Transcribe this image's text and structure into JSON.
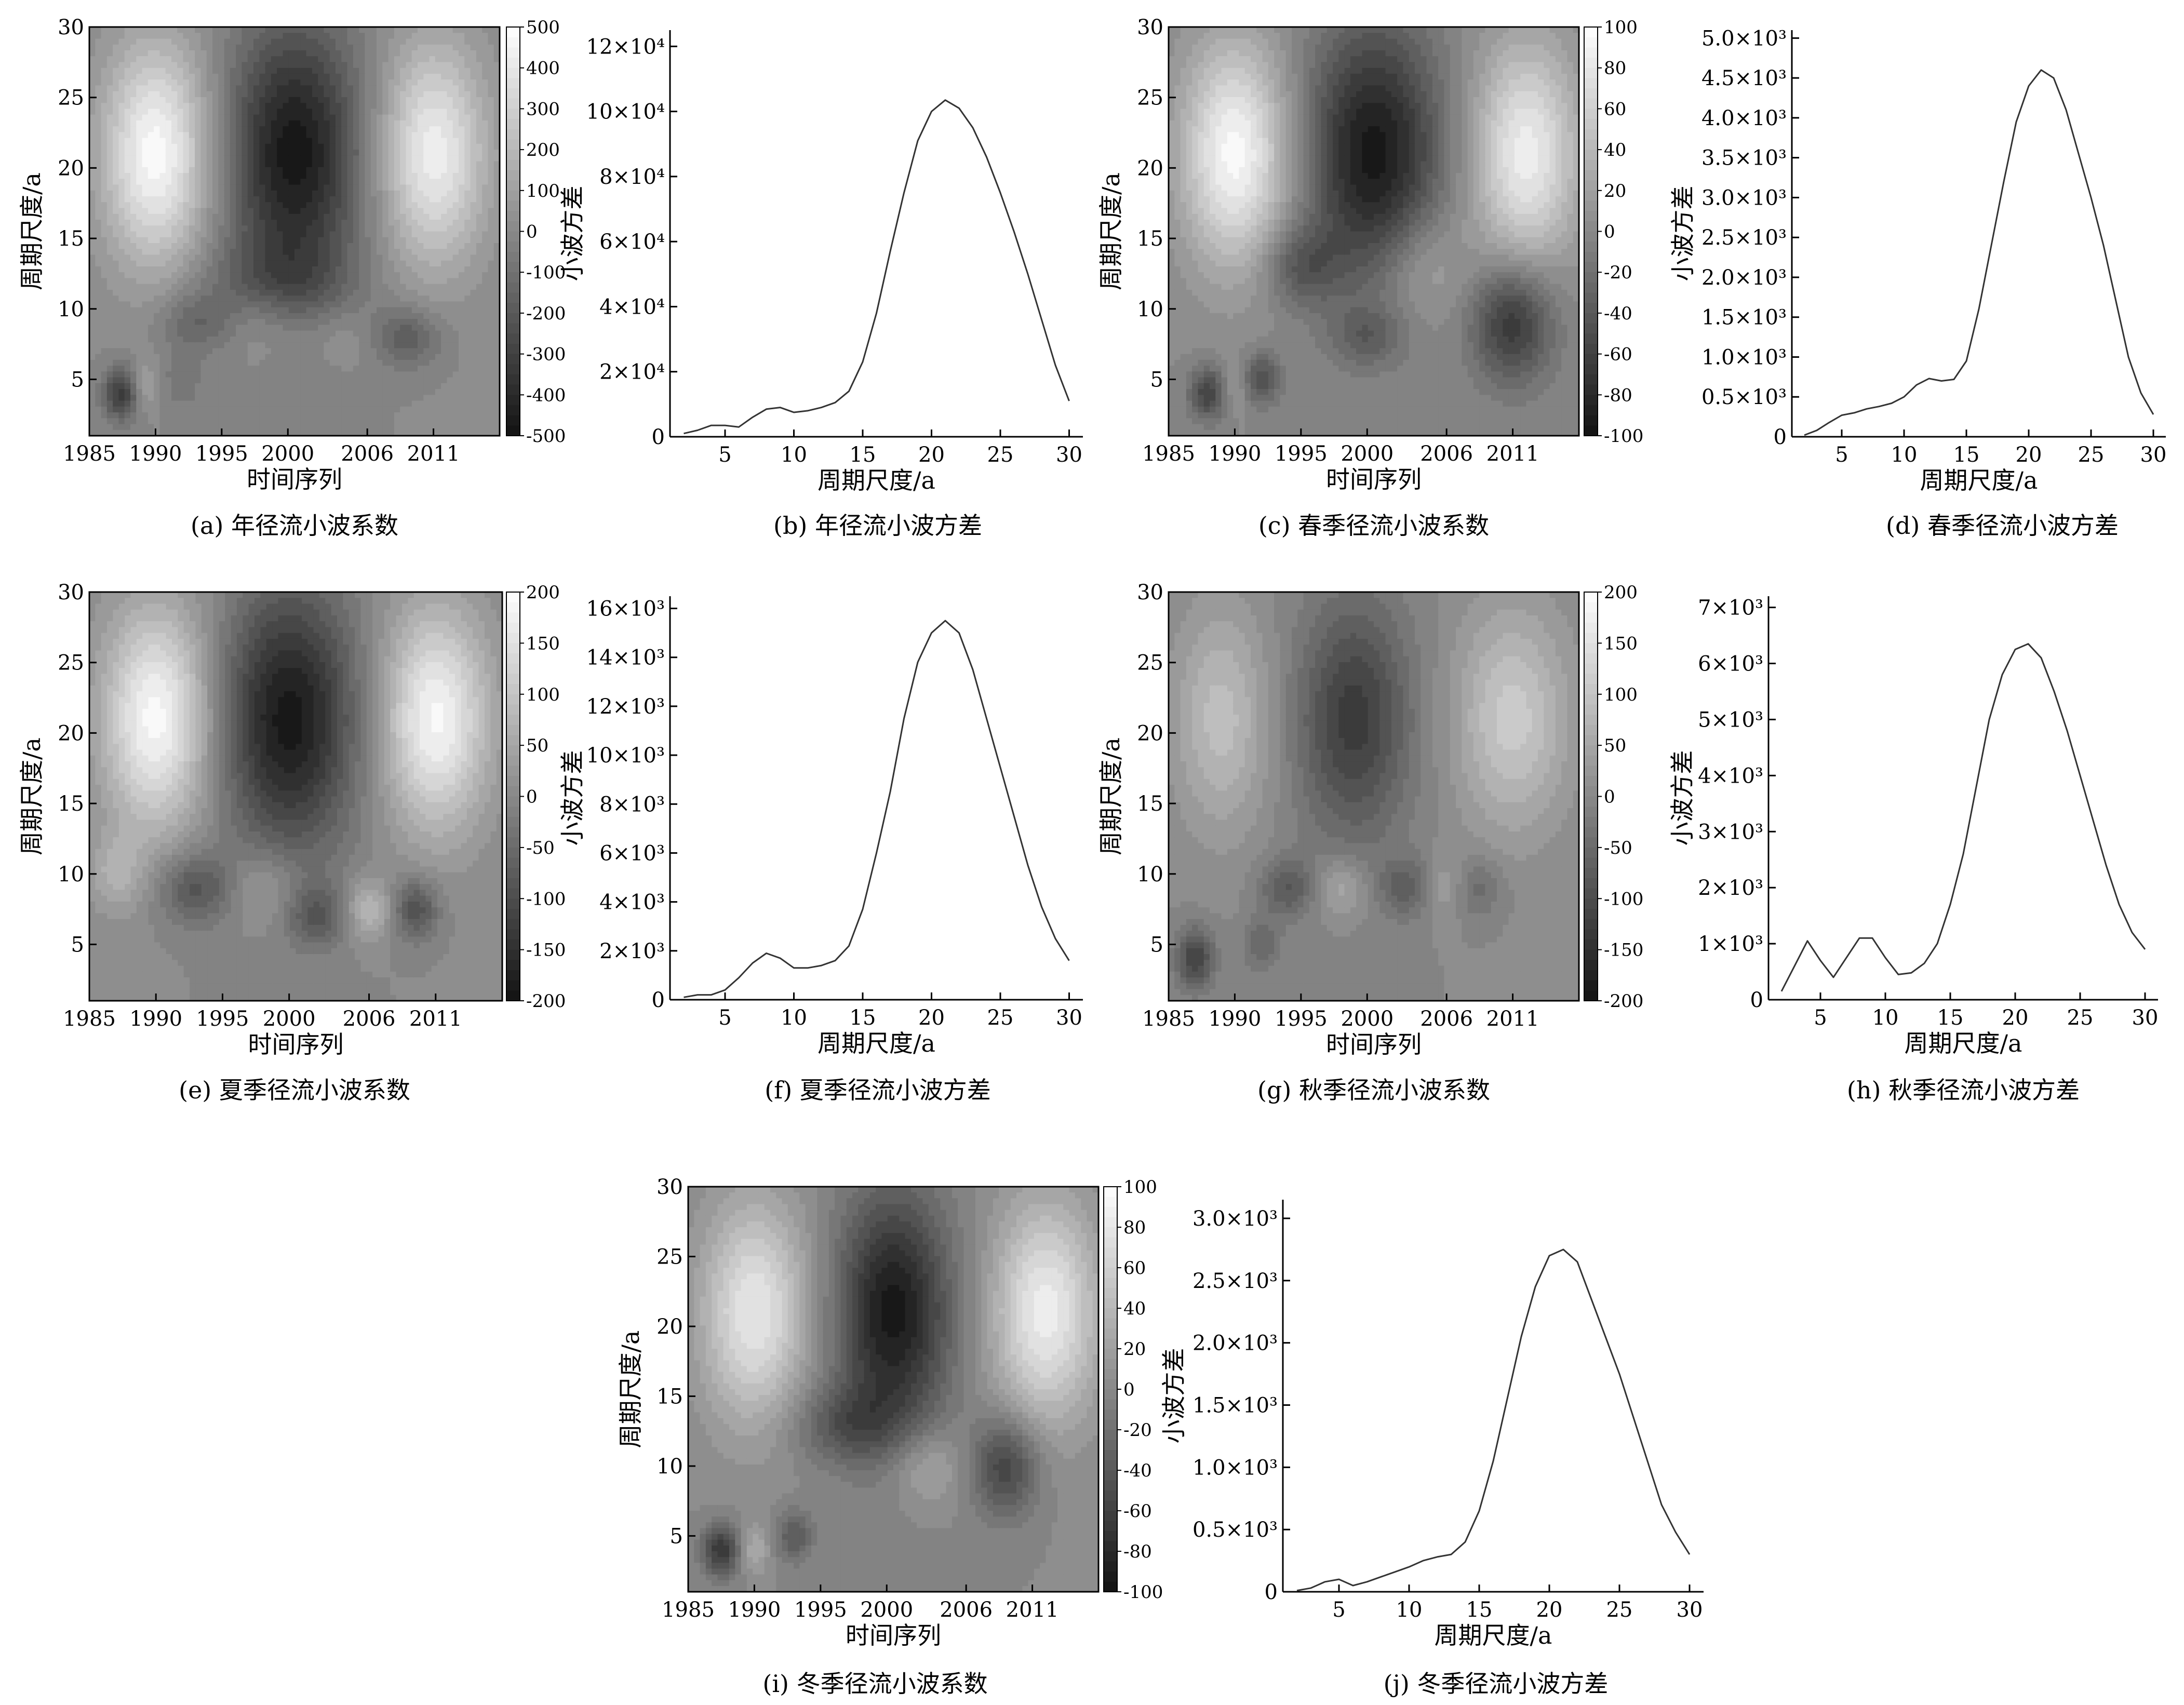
{
  "chart_data": [
    {
      "id": "a",
      "type": "heatmap",
      "caption": "(a) 年径流小波系数",
      "xlabel": "时间序列",
      "ylabel": "周期尺度/a",
      "x_ticks": [
        "1985",
        "1990",
        "1995",
        "2000",
        "2006",
        "2011"
      ],
      "y_ticks": [
        "5",
        "10",
        "15",
        "20",
        "25",
        "30"
      ],
      "xlim": [
        1985,
        2016
      ],
      "ylim": [
        1,
        30
      ],
      "colorbar_ticks": [
        "500",
        "400",
        "300",
        "200",
        "100",
        "0",
        "-100",
        "-200",
        "-300",
        "-400",
        "-500"
      ],
      "colorbar_range": [
        -500,
        500
      ],
      "features": [
        {
          "x": 1990,
          "y": 21,
          "value": 480,
          "sx": 2.8,
          "sy": 5.5
        },
        {
          "x": 2000.5,
          "y": 21,
          "value": -480,
          "sx": 3.5,
          "sy": 6.5
        },
        {
          "x": 2011,
          "y": 21,
          "value": 430,
          "sx": 2.8,
          "sy": 5.5
        },
        {
          "x": 1999,
          "y": 12,
          "value": -150,
          "sx": 4,
          "sy": 2
        },
        {
          "x": 1993,
          "y": 9,
          "value": -150,
          "sx": 2,
          "sy": 1.5
        },
        {
          "x": 2009,
          "y": 8,
          "value": -200,
          "sx": 1.8,
          "sy": 1.5
        },
        {
          "x": 1998,
          "y": 9,
          "value": 80,
          "sx": 2,
          "sy": 2
        },
        {
          "x": 2004,
          "y": 8,
          "value": 60,
          "sx": 2,
          "sy": 1.5
        },
        {
          "x": 1987.5,
          "y": 4,
          "value": -350,
          "sx": 1,
          "sy": 1.3
        },
        {
          "x": 1989,
          "y": 4.5,
          "value": 150,
          "sx": 0.8,
          "sy": 1.2
        },
        {
          "x": 1992,
          "y": 5,
          "value": -100,
          "sx": 1,
          "sy": 1.5
        }
      ]
    },
    {
      "id": "b",
      "type": "line",
      "caption": "(b) 年径流小波方差",
      "xlabel": "周期尺度/a",
      "ylabel": "小波方差",
      "x_ticks": [
        5,
        10,
        15,
        20,
        25,
        30
      ],
      "y_ticks": [
        0,
        20000,
        40000,
        60000,
        80000,
        100000,
        120000
      ],
      "y_tick_labels": [
        "0",
        "2×10⁴",
        "4×10⁴",
        "6×10⁴",
        "8×10⁴",
        "10×10⁴",
        "12×10⁴"
      ],
      "xlim": [
        1,
        31
      ],
      "ylim": [
        0,
        125000
      ],
      "x": [
        2,
        3,
        4,
        5,
        6,
        7,
        8,
        9,
        10,
        11,
        12,
        13,
        14,
        15,
        16,
        17,
        18,
        19,
        20,
        21,
        22,
        23,
        24,
        25,
        26,
        27,
        28,
        29,
        30
      ],
      "values": [
        1000,
        2000,
        3500,
        3500,
        3000,
        6000,
        8500,
        9000,
        7500,
        8000,
        9000,
        10500,
        14000,
        23000,
        38000,
        57000,
        75000,
        91000,
        100000,
        103500,
        101000,
        95000,
        86000,
        75000,
        63000,
        50000,
        36000,
        22000,
        11000
      ]
    },
    {
      "id": "c",
      "type": "heatmap",
      "caption": "(c) 春季径流小波系数",
      "xlabel": "时间序列",
      "ylabel": "周期尺度/a",
      "x_ticks": [
        "1985",
        "1990",
        "1995",
        "2000",
        "2006",
        "2011"
      ],
      "y_ticks": [
        "5",
        "10",
        "15",
        "20",
        "25",
        "30"
      ],
      "xlim": [
        1985,
        2016
      ],
      "ylim": [
        1,
        30
      ],
      "colorbar_ticks": [
        "100",
        "80",
        "60",
        "40",
        "20",
        "0",
        "-20",
        "-40",
        "-60",
        "-80",
        "-100"
      ],
      "colorbar_range": [
        -100,
        100
      ],
      "features": [
        {
          "x": 1990,
          "y": 21,
          "value": 95,
          "sx": 2.8,
          "sy": 5.5
        },
        {
          "x": 2000.5,
          "y": 21,
          "value": -95,
          "sx": 3.5,
          "sy": 6.5
        },
        {
          "x": 2012,
          "y": 21,
          "value": 85,
          "sx": 2.8,
          "sy": 5.5
        },
        {
          "x": 2011,
          "y": 9,
          "value": -70,
          "sx": 2.2,
          "sy": 3
        },
        {
          "x": 1995,
          "y": 13,
          "value": -40,
          "sx": 2,
          "sy": 2
        },
        {
          "x": 2004,
          "y": 13,
          "value": 30,
          "sx": 2.5,
          "sy": 3
        },
        {
          "x": 1988,
          "y": 4,
          "value": -60,
          "sx": 1,
          "sy": 1.3
        },
        {
          "x": 1992,
          "y": 5,
          "value": -50,
          "sx": 1,
          "sy": 1.3
        },
        {
          "x": 2000,
          "y": 8,
          "value": -30,
          "sx": 2,
          "sy": 1.5
        },
        {
          "x": 1990,
          "y": 4.5,
          "value": 20,
          "sx": 0.8,
          "sy": 1.2
        }
      ]
    },
    {
      "id": "d",
      "type": "line",
      "caption": "(d) 春季径流小波方差",
      "xlabel": "周期尺度/a",
      "ylabel": "小波方差",
      "x_ticks": [
        5,
        10,
        15,
        20,
        25,
        30
      ],
      "y_ticks": [
        0,
        500,
        1000,
        1500,
        2000,
        2500,
        3000,
        3500,
        4000,
        4500,
        5000
      ],
      "y_tick_labels": [
        "0",
        "0.5×10³",
        "1.0×10³",
        "1.5×10³",
        "2.0×10³",
        "2.5×10³",
        "3.0×10³",
        "3.5×10³",
        "4.0×10³",
        "4.5×10³",
        "5.0×10³"
      ],
      "xlim": [
        1,
        31
      ],
      "ylim": [
        0,
        5100
      ],
      "x": [
        2,
        3,
        4,
        5,
        6,
        7,
        8,
        9,
        10,
        11,
        12,
        13,
        14,
        15,
        16,
        17,
        18,
        19,
        20,
        21,
        22,
        23,
        24,
        25,
        26,
        27,
        28,
        29,
        30
      ],
      "values": [
        20,
        80,
        180,
        270,
        300,
        350,
        380,
        420,
        500,
        650,
        730,
        700,
        720,
        950,
        1600,
        2400,
        3200,
        3950,
        4400,
        4600,
        4500,
        4100,
        3550,
        3000,
        2400,
        1700,
        1000,
        550,
        280
      ]
    },
    {
      "id": "e",
      "type": "heatmap",
      "caption": "(e) 夏季径流小波系数",
      "xlabel": "时间序列",
      "ylabel": "周期尺度/a",
      "x_ticks": [
        "1985",
        "1990",
        "1995",
        "2000",
        "2006",
        "2011"
      ],
      "y_ticks": [
        "5",
        "10",
        "15",
        "20",
        "25",
        "30"
      ],
      "xlim": [
        1985,
        2016
      ],
      "ylim": [
        1,
        30
      ],
      "colorbar_ticks": [
        "200",
        "150",
        "100",
        "50",
        "0",
        "-50",
        "-100",
        "-150",
        "-200"
      ],
      "colorbar_range": [
        -200,
        200
      ],
      "features": [
        {
          "x": 1990,
          "y": 21,
          "value": 190,
          "sx": 2.8,
          "sy": 5.5
        },
        {
          "x": 2000,
          "y": 21,
          "value": -190,
          "sx": 3.5,
          "sy": 6.5
        },
        {
          "x": 2011,
          "y": 21,
          "value": 185,
          "sx": 2.8,
          "sy": 5.5
        },
        {
          "x": 1993,
          "y": 9,
          "value": -90,
          "sx": 2,
          "sy": 1.8
        },
        {
          "x": 2002,
          "y": 7,
          "value": -80,
          "sx": 1.5,
          "sy": 1.5
        },
        {
          "x": 2009.5,
          "y": 7.5,
          "value": -100,
          "sx": 1.2,
          "sy": 1.5
        },
        {
          "x": 1998,
          "y": 9,
          "value": 50,
          "sx": 2,
          "sy": 2
        },
        {
          "x": 2006,
          "y": 7.5,
          "value": 80,
          "sx": 1.2,
          "sy": 1.5
        },
        {
          "x": 1987,
          "y": 10,
          "value": 60,
          "sx": 1.5,
          "sy": 2
        }
      ]
    },
    {
      "id": "f",
      "type": "line",
      "caption": "(f) 夏季径流小波方差",
      "xlabel": "周期尺度/a",
      "ylabel": "小波方差",
      "x_ticks": [
        5,
        10,
        15,
        20,
        25,
        30
      ],
      "y_ticks": [
        0,
        2000,
        4000,
        6000,
        8000,
        10000,
        12000,
        14000,
        16000
      ],
      "y_tick_labels": [
        "0",
        "2×10³",
        "4×10³",
        "6×10³",
        "8×10³",
        "10×10³",
        "12×10³",
        "14×10³",
        "16×10³"
      ],
      "xlim": [
        1,
        31
      ],
      "ylim": [
        0,
        16500
      ],
      "x": [
        2,
        3,
        4,
        5,
        6,
        7,
        8,
        9,
        10,
        11,
        12,
        13,
        14,
        15,
        16,
        17,
        18,
        19,
        20,
        21,
        22,
        23,
        24,
        25,
        26,
        27,
        28,
        29,
        30
      ],
      "values": [
        100,
        200,
        200,
        400,
        900,
        1500,
        1900,
        1700,
        1300,
        1300,
        1400,
        1600,
        2200,
        3700,
        6000,
        8500,
        11500,
        13800,
        15000,
        15500,
        15000,
        13500,
        11500,
        9500,
        7500,
        5500,
        3800,
        2500,
        1600
      ]
    },
    {
      "id": "g",
      "type": "heatmap",
      "caption": "(g) 秋季径流小波系数",
      "xlabel": "时间序列",
      "ylabel": "周期尺度/a",
      "x_ticks": [
        "1985",
        "1990",
        "1995",
        "2000",
        "2006",
        "2011"
      ],
      "y_ticks": [
        "5",
        "10",
        "15",
        "20",
        "25",
        "30"
      ],
      "xlim": [
        1985,
        2016
      ],
      "ylim": [
        1,
        30
      ],
      "colorbar_ticks": [
        "200",
        "150",
        "100",
        "50",
        "0",
        "-50",
        "-100",
        "-150",
        "-200"
      ],
      "colorbar_range": [
        -200,
        200
      ],
      "features": [
        {
          "x": 1989,
          "y": 21,
          "value": 90,
          "sx": 2.5,
          "sy": 5.5
        },
        {
          "x": 1999,
          "y": 21,
          "value": -130,
          "sx": 3,
          "sy": 6
        },
        {
          "x": 2011,
          "y": 21,
          "value": 110,
          "sx": 3,
          "sy": 5.5
        },
        {
          "x": 1994,
          "y": 9,
          "value": -80,
          "sx": 1.5,
          "sy": 1.5
        },
        {
          "x": 2003,
          "y": 9,
          "value": -70,
          "sx": 1.5,
          "sy": 1.5
        },
        {
          "x": 2008,
          "y": 9,
          "value": -60,
          "sx": 1.5,
          "sy": 1.5
        },
        {
          "x": 1998,
          "y": 9,
          "value": 60,
          "sx": 1.5,
          "sy": 1.5
        },
        {
          "x": 2006,
          "y": 9,
          "value": 60,
          "sx": 1.2,
          "sy": 1.5
        },
        {
          "x": 1987,
          "y": 4,
          "value": -120,
          "sx": 1,
          "sy": 1.5
        },
        {
          "x": 1992,
          "y": 5,
          "value": -60,
          "sx": 1,
          "sy": 1.3
        }
      ]
    },
    {
      "id": "h",
      "type": "line",
      "caption": "(h) 秋季径流小波方差",
      "xlabel": "周期尺度/a",
      "ylabel": "小波方差",
      "x_ticks": [
        5,
        10,
        15,
        20,
        25,
        30
      ],
      "y_ticks": [
        0,
        1000,
        2000,
        3000,
        4000,
        5000,
        6000,
        7000
      ],
      "y_tick_labels": [
        "0",
        "1×10³",
        "2×10³",
        "3×10³",
        "4×10³",
        "5×10³",
        "6×10³",
        "7×10³"
      ],
      "xlim": [
        1,
        31
      ],
      "ylim": [
        0,
        7200
      ],
      "x": [
        2,
        3,
        4,
        5,
        6,
        7,
        8,
        9,
        10,
        11,
        12,
        13,
        14,
        15,
        16,
        17,
        18,
        19,
        20,
        21,
        22,
        23,
        24,
        25,
        26,
        27,
        28,
        29,
        30
      ],
      "values": [
        150,
        600,
        1050,
        700,
        400,
        750,
        1100,
        1100,
        750,
        450,
        480,
        650,
        1000,
        1700,
        2600,
        3800,
        5000,
        5800,
        6250,
        6350,
        6100,
        5500,
        4800,
        4000,
        3200,
        2400,
        1700,
        1200,
        900
      ]
    },
    {
      "id": "i",
      "type": "heatmap",
      "caption": "(i) 冬季径流小波系数",
      "xlabel": "时间序列",
      "ylabel": "周期尺度/a",
      "x_ticks": [
        "1985",
        "1990",
        "1995",
        "2000",
        "2006",
        "2011"
      ],
      "y_ticks": [
        "5",
        "10",
        "15",
        "20",
        "25",
        "30"
      ],
      "xlim": [
        1985,
        2016
      ],
      "ylim": [
        1,
        30
      ],
      "colorbar_ticks": [
        "100",
        "80",
        "60",
        "40",
        "20",
        "0",
        "-20",
        "-40",
        "-60",
        "-80",
        "-100"
      ],
      "colorbar_range": [
        -100,
        100
      ],
      "features": [
        {
          "x": 1990,
          "y": 21,
          "value": 80,
          "sx": 2.8,
          "sy": 5.5
        },
        {
          "x": 2000.5,
          "y": 21,
          "value": -95,
          "sx": 3,
          "sy": 6
        },
        {
          "x": 2012,
          "y": 21,
          "value": 85,
          "sx": 2.8,
          "sy": 5.5
        },
        {
          "x": 1997,
          "y": 13,
          "value": -40,
          "sx": 3,
          "sy": 2
        },
        {
          "x": 2009,
          "y": 10,
          "value": -60,
          "sx": 1.8,
          "sy": 2.5
        },
        {
          "x": 2003,
          "y": 10,
          "value": 30,
          "sx": 2,
          "sy": 2
        },
        {
          "x": 1987.5,
          "y": 4,
          "value": -70,
          "sx": 1,
          "sy": 1.3
        },
        {
          "x": 1990,
          "y": 4,
          "value": 30,
          "sx": 0.8,
          "sy": 1.2
        },
        {
          "x": 1993,
          "y": 5,
          "value": -40,
          "sx": 1,
          "sy": 1.3
        }
      ]
    },
    {
      "id": "j",
      "type": "line",
      "caption": "(j) 冬季径流小波方差",
      "xlabel": "周期尺度/a",
      "ylabel": "小波方差",
      "x_ticks": [
        5,
        10,
        15,
        20,
        25,
        30
      ],
      "y_ticks": [
        0,
        500,
        1000,
        1500,
        2000,
        2500,
        3000
      ],
      "y_tick_labels": [
        "0",
        "0.5×10³",
        "1.0×10³",
        "1.5×10³",
        "2.0×10³",
        "2.5×10³",
        "3.0×10³"
      ],
      "xlim": [
        1,
        31
      ],
      "ylim": [
        0,
        3150
      ],
      "x": [
        2,
        3,
        4,
        5,
        6,
        7,
        8,
        9,
        10,
        11,
        12,
        13,
        14,
        15,
        16,
        17,
        18,
        19,
        20,
        21,
        22,
        23,
        24,
        25,
        26,
        27,
        28,
        29,
        30
      ],
      "values": [
        10,
        30,
        80,
        100,
        50,
        80,
        120,
        160,
        200,
        250,
        280,
        300,
        400,
        650,
        1050,
        1550,
        2050,
        2450,
        2700,
        2750,
        2650,
        2350,
        2050,
        1750,
        1400,
        1050,
        700,
        480,
        300
      ]
    }
  ]
}
